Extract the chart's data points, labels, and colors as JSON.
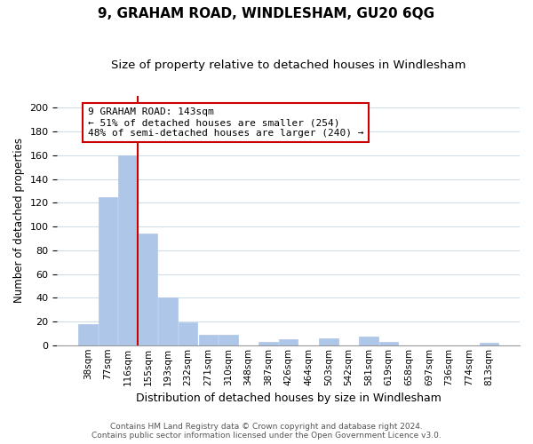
{
  "title": "9, GRAHAM ROAD, WINDLESHAM, GU20 6QG",
  "subtitle": "Size of property relative to detached houses in Windlesham",
  "xlabel": "Distribution of detached houses by size in Windlesham",
  "ylabel": "Number of detached properties",
  "bar_labels": [
    "38sqm",
    "77sqm",
    "116sqm",
    "155sqm",
    "193sqm",
    "232sqm",
    "271sqm",
    "310sqm",
    "348sqm",
    "387sqm",
    "426sqm",
    "464sqm",
    "503sqm",
    "542sqm",
    "581sqm",
    "619sqm",
    "658sqm",
    "697sqm",
    "736sqm",
    "774sqm",
    "813sqm"
  ],
  "bar_values": [
    18,
    125,
    160,
    94,
    40,
    19,
    9,
    9,
    0,
    3,
    5,
    0,
    6,
    0,
    7,
    3,
    0,
    0,
    0,
    0,
    2
  ],
  "bar_color": "#aec6e8",
  "bar_edge_color": "#aec6e8",
  "vline_color": "#cc0000",
  "ylim": [
    0,
    210
  ],
  "yticks": [
    0,
    20,
    40,
    60,
    80,
    100,
    120,
    140,
    160,
    180,
    200
  ],
  "annotation_title": "9 GRAHAM ROAD: 143sqm",
  "annotation_line1": "← 51% of detached houses are smaller (254)",
  "annotation_line2": "48% of semi-detached houses are larger (240) →",
  "annotation_box_color": "#ffffff",
  "annotation_box_edge": "#cc0000",
  "footnote1": "Contains HM Land Registry data © Crown copyright and database right 2024.",
  "footnote2": "Contains public sector information licensed under the Open Government Licence v3.0.",
  "grid_color": "#d0dce8",
  "background_color": "#ffffff",
  "title_fontsize": 11,
  "subtitle_fontsize": 9.5
}
